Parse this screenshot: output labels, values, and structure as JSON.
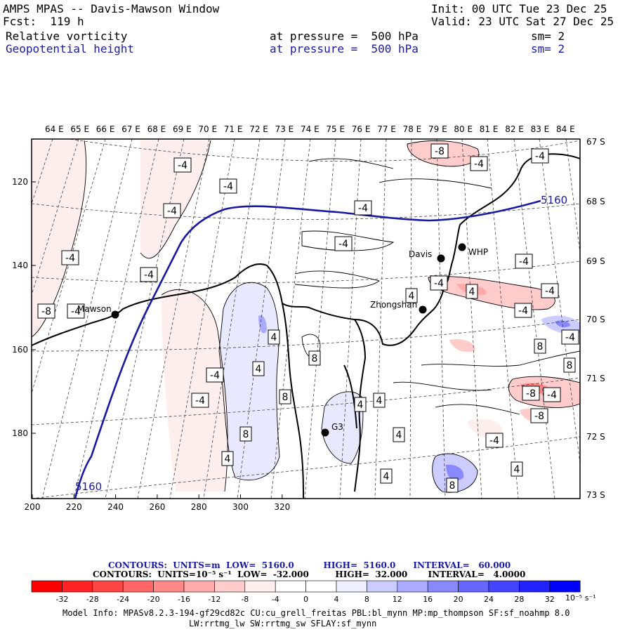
{
  "header": {
    "title": "AMPS MPAS -- Davis-Mawson Window",
    "fcst": "Fcst:  119 h",
    "init": "Init: 00 UTC Tue 23 Dec 25",
    "valid": "Valid: 23 UTC Sat 27 Dec 25",
    "field1_name": "Relative vorticity",
    "field1_level": "at pressure =  500 hPa",
    "field1_sm": "sm= 2",
    "field2_name": "Geopotential height",
    "field2_level": "at pressure =  500 hPa",
    "field2_sm": "sm= 2"
  },
  "map": {
    "top_ticks": [
      "64 E",
      "65 E",
      "66 E",
      "67 E",
      "68 E",
      "69 E",
      "70 E",
      "71 E",
      "72 E",
      "73 E",
      "74 E",
      "75 E",
      "76 E",
      "77 E",
      "78 E",
      "79 E",
      "80 E",
      "81 E",
      "82 E",
      "83 E",
      "84 E"
    ],
    "right_ticks": [
      "67 S",
      "68 S",
      "69 S",
      "70 S",
      "71 S",
      "72 S",
      "73 S"
    ],
    "left_ticks": [
      "120",
      "140",
      "160",
      "180"
    ],
    "bottom_ticks": [
      "200",
      "220",
      "240",
      "260",
      "280",
      "300",
      "320"
    ],
    "stations": [
      {
        "name": "Mawson"
      },
      {
        "name": "Davis"
      },
      {
        "name": "WHP"
      },
      {
        "name": "Zhongshan"
      },
      {
        "name": "G3"
      }
    ],
    "height_labels": [
      "5160",
      "5160"
    ],
    "vort_labels": [
      "-8",
      "-4",
      "-4",
      "-4",
      "-4",
      "-4",
      "-4",
      "-4",
      "-4",
      "-4",
      "-4",
      "-4",
      "4",
      "4",
      "-4",
      "-8",
      "-4",
      "-4",
      "4",
      "-4",
      "8",
      "8",
      "4",
      "-4",
      "8",
      "-4",
      "-4",
      "8",
      "4",
      "4",
      "-8",
      "-8",
      "8",
      "4",
      "-4",
      "4",
      "4",
      "4",
      "4",
      "8",
      "8"
    ],
    "colors": {
      "height": "#1a1aa0",
      "coast": "#000000",
      "grid": "#444444"
    }
  },
  "colorbar": {
    "line1": "CONTOURS:  UNITS=m  LOW=  5160.0          HIGH=  5160.0      INTERVAL=   60.000",
    "line2": "CONTOURS:  UNITS=10⁻⁵ s⁻¹  LOW=  -32.000         HIGH=  32.000       INTERVAL=   4.0000",
    "ticks": [
      "-32",
      "-28",
      "-24",
      "-20",
      "-16",
      "-12",
      "-8",
      "-4",
      "0",
      "4",
      "8",
      "12",
      "16",
      "20",
      "24",
      "28",
      "32"
    ],
    "unit": "10⁻⁵ s⁻¹",
    "colors": [
      "#ff0000",
      "#ff2222",
      "#ff4444",
      "#ff6666",
      "#ff8888",
      "#ffaaaa",
      "#ffcccc",
      "#ffeeee",
      "#ffffff",
      "#ffffff",
      "#eeeeff",
      "#ccccff",
      "#aaaaff",
      "#8888ff",
      "#6666ff",
      "#4444ff",
      "#2222ff",
      "#0000ff"
    ]
  },
  "footer": {
    "line1": "Model Info: MPASv8.2.3-194-gf29cd82c CU:cu_grell_freitas PBL:bl_mynn MP:mp_thompson SF:sf_noahmp 8.0",
    "line2": "LW:rrtmg_lw SW:rrtmg_sw SFLAY:sf_mynn"
  }
}
